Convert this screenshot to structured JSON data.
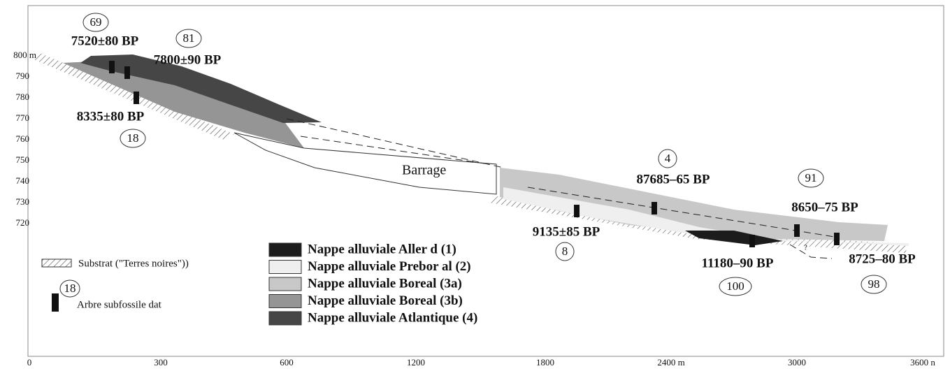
{
  "axes": {
    "y_labels": [
      "800 m",
      "790",
      "780",
      "770",
      "760",
      "750",
      "740",
      "730",
      "720"
    ],
    "x_labels": [
      "0",
      "300",
      "600",
      "1200",
      "1800",
      "2400 m",
      "3000",
      "3600 n"
    ]
  },
  "samples": [
    {
      "id": "69",
      "date": "7520±80 BP"
    },
    {
      "id": "81",
      "date": "7800±90 BP"
    },
    {
      "id": "18",
      "date": "8335±80 BP"
    },
    {
      "id": "4",
      "date": "87685–65 BP"
    },
    {
      "id": "91",
      "date": "8650–75 BP"
    },
    {
      "id": "8",
      "date": "9135±85 BP"
    },
    {
      "id": "100",
      "date": "11180–90 BP"
    },
    {
      "id": "98",
      "date": "8725–80 BP"
    }
  ],
  "section_labels": {
    "barrage": "Barrage",
    "unknown": "?"
  },
  "legend": {
    "substrate": "Substrat (\"Terres noires\"))",
    "tree": {
      "id": "18",
      "label": "Arbre subfossile dat"
    },
    "units": [
      {
        "label": "Nappe alluviale Aller d (1)",
        "color": "#1c1c1c"
      },
      {
        "label": "Nappe alluviale Prebor al (2)",
        "color": "#efefef"
      },
      {
        "label": "Nappe alluviale Boreal (3a)",
        "color": "#c8c8c8"
      },
      {
        "label": "Nappe alluviale Boreal (3b)",
        "color": "#959595"
      },
      {
        "label": "Nappe alluviale Atlantique (4)",
        "color": "#464646"
      }
    ]
  }
}
